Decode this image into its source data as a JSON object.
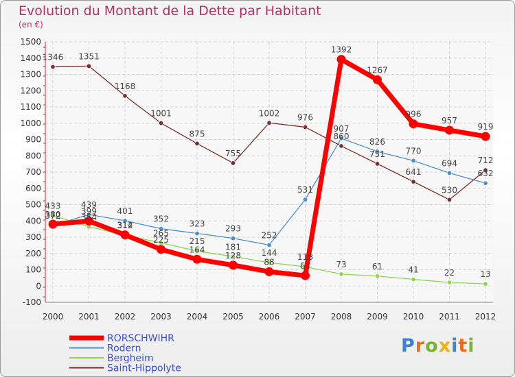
{
  "title": "Evolution du Montant de la Dette par Habitant",
  "unit": "(en €)",
  "logo": {
    "letters": [
      {
        "ch": "P",
        "color": "#3f82d8"
      },
      {
        "ch": "r",
        "color": "#e86f1a"
      },
      {
        "ch": "o",
        "color": "#79b52a"
      },
      {
        "ch": "x",
        "color": "#e8b412"
      },
      {
        "ch": "i",
        "color": "#3f82d8"
      },
      {
        "ch": "t",
        "color": "#e86f1a"
      },
      {
        "ch": "i",
        "color": "#79b52a"
      }
    ]
  },
  "chart_data": {
    "type": "line",
    "title": "Evolution du Montant de la Dette par Habitant",
    "ylabel": "(en €)",
    "x": [
      "2000",
      "2001",
      "2002",
      "2003",
      "2004",
      "2005",
      "2006",
      "2007",
      "2008",
      "2009",
      "2010",
      "2011",
      "2012"
    ],
    "ylim": [
      -100,
      1500
    ],
    "yticks": [
      -100,
      0,
      100,
      200,
      300,
      400,
      500,
      600,
      700,
      800,
      900,
      1000,
      1100,
      1200,
      1300,
      1400,
      1500
    ],
    "grid": true,
    "legend_position": "bottom-left",
    "series": [
      {
        "name": "RORSCHWIHR",
        "color": "#ff0000",
        "emphasis": true,
        "values": [
          380,
          399,
          314,
          225,
          164,
          128,
          88,
          64,
          1392,
          1267,
          996,
          957,
          919
        ],
        "labels": [
          "380",
          "399",
          "314",
          "225",
          "164",
          "128",
          "88",
          "64",
          "1392",
          "1267",
          "996",
          "957",
          "919"
        ]
      },
      {
        "name": "Rodern",
        "color": "#4a90d0",
        "values": [
          372,
          439,
          401,
          352,
          323,
          293,
          252,
          531,
          907,
          826,
          770,
          694,
          632
        ],
        "labels": [
          "372",
          "439",
          "401",
          "352",
          "323",
          "293",
          "252",
          "531",
          "907",
          "826",
          "770",
          "694",
          "632"
        ]
      },
      {
        "name": "Bergheim",
        "color": "#8ed64f",
        "values": [
          433,
          364,
          312,
          265,
          215,
          181,
          144,
          118,
          73,
          61,
          41,
          22,
          13
        ],
        "labels": [
          "433",
          "364",
          "312",
          "265",
          "215",
          "181",
          "144",
          "118",
          "73",
          "61",
          "41",
          "22",
          "13"
        ]
      },
      {
        "name": "Saint-Hippolyte",
        "color": "#7a2e2e",
        "values": [
          1346,
          1351,
          1168,
          1001,
          875,
          755,
          1002,
          976,
          860,
          751,
          641,
          530,
          712
        ],
        "labels": [
          "1346",
          "1351",
          "1168",
          "1001",
          "875",
          "755",
          "1002",
          "976",
          "860",
          "751",
          "641",
          "530",
          "712"
        ]
      }
    ]
  }
}
